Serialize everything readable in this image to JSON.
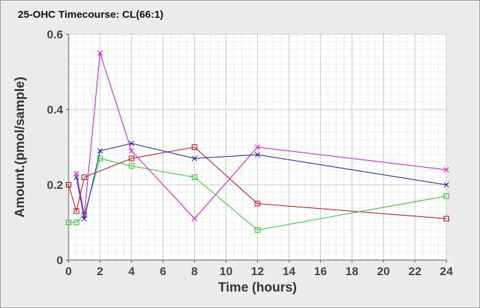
{
  "chart_data": {
    "type": "line",
    "title": "25-OHC Timecourse: CL(66:1)",
    "xlabel": "Time (hours)",
    "ylabel": "Amount.(pmol/sample)",
    "xlim": [
      0,
      24
    ],
    "ylim": [
      0,
      0.6
    ],
    "x_ticks": [
      0,
      2,
      4,
      6,
      8,
      10,
      12,
      14,
      16,
      18,
      20,
      22,
      24
    ],
    "x_tick_labels": [
      "0",
      "2",
      "4",
      "6",
      "8",
      "10",
      "12",
      "14",
      "16",
      "18",
      "20",
      "22",
      "24"
    ],
    "y_ticks": [
      0,
      0.2,
      0.4,
      0.6
    ],
    "y_tick_labels": [
      "0",
      "0.2",
      "0.4",
      "0.6"
    ],
    "grid": true,
    "legend": "none",
    "background_color": "#ececec",
    "plot_background_color": "#ffffff",
    "series": [
      {
        "color": "#cc0000",
        "marker": "square",
        "points": [
          [
            0,
            0.2
          ],
          [
            0.5,
            0.13
          ],
          [
            1,
            0.22
          ],
          [
            4,
            0.27
          ],
          [
            8,
            0.3
          ],
          [
            12,
            0.15
          ],
          [
            24,
            0.11
          ]
        ]
      },
      {
        "color": "#22cc22",
        "marker": "square",
        "points": [
          [
            0,
            0.1
          ],
          [
            0.5,
            0.1
          ],
          [
            1,
            0.12
          ],
          [
            2,
            0.27
          ],
          [
            4,
            0.25
          ],
          [
            8,
            0.22
          ],
          [
            12,
            0.08
          ],
          [
            24,
            0.17
          ]
        ]
      },
      {
        "color": "#1111aa",
        "marker": "x",
        "points": [
          [
            0.5,
            0.22
          ],
          [
            1,
            0.11
          ],
          [
            2,
            0.29
          ],
          [
            4,
            0.31
          ],
          [
            8,
            0.27
          ],
          [
            12,
            0.28
          ],
          [
            24,
            0.2
          ]
        ]
      },
      {
        "color": "#dd00dd",
        "marker": "x",
        "points": [
          [
            0.5,
            0.23
          ],
          [
            1,
            0.12
          ],
          [
            2,
            0.55
          ],
          [
            4,
            0.29
          ],
          [
            8,
            0.11
          ],
          [
            12,
            0.3
          ],
          [
            24,
            0.24
          ]
        ]
      }
    ]
  }
}
